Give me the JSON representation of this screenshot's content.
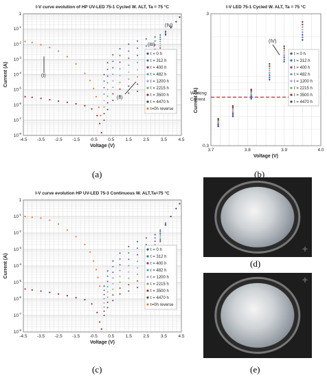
{
  "labels": {
    "a": "(a)",
    "b": "(b)",
    "c": "(c)",
    "d": "(d)",
    "e": "(e)"
  },
  "chart_data": [
    {
      "id": "a",
      "type": "scatter",
      "title": "I-V curve evolution of HP UV-LED 75-1 Cycled W. ALT, Ta = 75 °C",
      "xlabel": "Voltage (V)",
      "ylabel": "Current (A)",
      "xlim": [
        -4.5,
        4.5
      ],
      "ylim": [
        1e-08,
        1
      ],
      "yscale": "log",
      "xticks": [
        "-4.5",
        "-3.5",
        "-2.5",
        "-1.5",
        "-0.5",
        "0.5",
        "1.5",
        "2.5",
        "3.5",
        "4.5"
      ],
      "yticks": [
        "1",
        "10^-1",
        "10^-2",
        "10^-3",
        "10^-4",
        "10^-5",
        "10^-6",
        "10^-7",
        "10^-8"
      ],
      "legend_placement": "right",
      "annotations": [
        "(I)",
        "(II)",
        "(III)",
        "(IV)"
      ],
      "series": [
        {
          "name": "t = 0 h",
          "color": "#2f4f7f"
        },
        {
          "name": "t = 312 h",
          "color": "#3b6ea8"
        },
        {
          "name": "t = 400 h",
          "color": "#7a3aa0"
        },
        {
          "name": "t = 482 h",
          "color": "#4aa3b0"
        },
        {
          "name": "t = 1200 h",
          "color": "#aa9cd0"
        },
        {
          "name": "t = 2215 h",
          "color": "#6fb04a"
        },
        {
          "name": "t = 3500 h",
          "color": "#9e2a2a"
        },
        {
          "name": "t = 4470 h",
          "color": "#444444"
        },
        {
          "name": "t=0h reverse",
          "color": "#e67a2e"
        }
      ],
      "curves": {
        "reverse_x": [
          -4.4,
          -4.0,
          -3.5,
          -3.0,
          -2.5,
          -2.0,
          -1.5,
          -1.0,
          -0.7,
          -0.5,
          -0.35,
          -0.2,
          -0.1
        ],
        "reverse_y": [
          0.015,
          0.013,
          0.009,
          0.006,
          0.0035,
          0.0015,
          0.0005,
          0.00012,
          4e-05,
          1.2e-05,
          3.5e-06,
          7e-07,
          2e-07
        ],
        "t0_reverse_x": [
          -4.4,
          -4.0,
          -3.5,
          -3.0,
          -2.5,
          -2.0,
          -1.5,
          -1.0,
          -0.6,
          -0.3,
          -0.15,
          -0.05
        ],
        "t0_reverse_y": [
          3.5e-06,
          3.2e-06,
          2.7e-06,
          2.2e-06,
          1.8e-06,
          1.5e-06,
          1.2e-06,
          9e-07,
          5.5e-07,
          2e-07,
          6e-08,
          1.5e-08
        ],
        "forward_x": [
          0.1,
          0.3,
          0.6,
          1.0,
          1.5,
          2.0,
          2.5,
          3.0,
          3.3,
          3.6,
          3.9,
          4.2,
          4.4
        ],
        "forward_t0_y": [
          0.0001,
          0.0006,
          0.002,
          0.005,
          0.01,
          0.016,
          0.022,
          0.03,
          0.04,
          0.07,
          0.15,
          0.3,
          0.6
        ],
        "forward_t4470_y": [
          1e-07,
          5e-07,
          2e-06,
          4e-06,
          6e-06,
          8e-06,
          1.2e-05,
          0.0004,
          0.004,
          0.04,
          0.12,
          0.3,
          0.6
        ]
      }
    },
    {
      "id": "b",
      "type": "scatter",
      "title": "I-V LED 75-1 Cycled W. ALT, Ta = 75 °C",
      "xlabel": "Voltage (V)",
      "ylabel": "Current (A)",
      "xlim": [
        3.7,
        4.0
      ],
      "ylim": [
        0.3,
        3
      ],
      "yscale": "log",
      "xticks": [
        "3.7",
        "3.8",
        "3.9",
        "4.0"
      ],
      "yticks": [
        "3",
        "0.3"
      ],
      "annotations": [
        "(IV)",
        "Working Current"
      ],
      "working_current": 0.7,
      "x": [
        3.72,
        3.76,
        3.81,
        3.86,
        3.9,
        3.95
      ],
      "y_range": [
        [
          0.42,
          0.48
        ],
        [
          0.5,
          0.6
        ],
        [
          0.68,
          0.8
        ],
        [
          0.95,
          1.25
        ],
        [
          1.3,
          1.7
        ],
        [
          1.9,
          2.6
        ]
      ]
    },
    {
      "id": "c",
      "type": "scatter",
      "title": "I-V curve evolution HP UV-LED 75-3 Continuous W. ALT,Ta=75 °C",
      "xlabel": "Voltage (V)",
      "ylabel": "Current (A)",
      "xlim": [
        -4.5,
        4.5
      ],
      "ylim": [
        1e-08,
        1
      ],
      "yscale": "log",
      "xticks": [
        "-4.5",
        "-3.5",
        "-2.5",
        "-1.5",
        "-0.5",
        "0.5",
        "1.5",
        "2.5",
        "3.5",
        "4.5"
      ],
      "yticks": [
        "1",
        "10^-1",
        "10^-2",
        "10^-3",
        "10^-4",
        "10^-5",
        "10^-6",
        "10^-7",
        "10^-8"
      ],
      "legend_placement": "right",
      "series": [
        {
          "name": "t = 0 h",
          "color": "#2f4f7f"
        },
        {
          "name": "t = 312 h",
          "color": "#3b6ea8"
        },
        {
          "name": "t = 400 h",
          "color": "#7a3aa0"
        },
        {
          "name": "t = 482 h",
          "color": "#4aa3b0"
        },
        {
          "name": "t = 1200 h",
          "color": "#aa9cd0"
        },
        {
          "name": "t = 2215 h",
          "color": "#6fb04a"
        },
        {
          "name": "t = 3500 h",
          "color": "#9e2a2a"
        },
        {
          "name": "t = 4470 h",
          "color": "#444444"
        },
        {
          "name": "t=0h reverse",
          "color": "#e67a2e"
        }
      ],
      "curves": {
        "reverse_x": [
          -4.4,
          -4.0,
          -3.5,
          -3.0,
          -2.5,
          -2.0,
          -1.5,
          -1.0,
          -0.7,
          -0.5,
          -0.35,
          -0.25,
          -0.15
        ],
        "reverse_y": [
          0.1,
          0.09,
          0.08,
          0.06,
          0.035,
          0.015,
          0.006,
          0.002,
          0.0007,
          0.0002,
          6e-05,
          2e-05,
          6e-06
        ],
        "t0_reverse_x": [
          -4.4,
          -4.0,
          -3.5,
          -3.0,
          -2.5,
          -2.0,
          -1.5,
          -1.0,
          -0.6,
          -0.3,
          -0.15,
          -0.05
        ],
        "t0_reverse_y": [
          4e-06,
          3.5e-06,
          3e-06,
          2.5e-06,
          2e-06,
          1.6e-06,
          1.2e-06,
          9e-07,
          5e-07,
          1.5e-07,
          4e-08,
          1.5e-08
        ],
        "forward_x": [
          0.1,
          0.3,
          0.6,
          1.0,
          1.5,
          2.0,
          2.5,
          3.0,
          3.3,
          3.6,
          3.9,
          4.2,
          4.4
        ],
        "forward_t0_y": [
          6e-06,
          5e-05,
          0.0002,
          0.0006,
          0.0015,
          0.003,
          0.005,
          0.008,
          0.015,
          0.04,
          0.1,
          0.3,
          0.6
        ],
        "forward_t4470_y": [
          1e-07,
          3e-07,
          8e-07,
          2e-06,
          3e-06,
          5e-06,
          8e-06,
          0.0003,
          0.003,
          0.03,
          0.1,
          0.3,
          0.6
        ]
      }
    }
  ]
}
